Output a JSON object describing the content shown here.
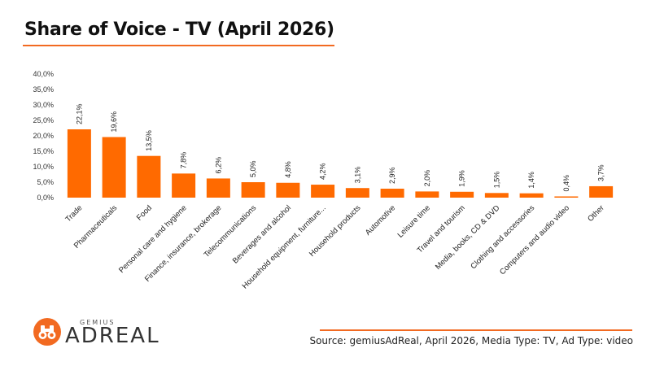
{
  "title": "Share of Voice - TV (April 2026)",
  "source": "Source: gemiusAdReal, April 2026, Media Type: TV, Ad Type: video",
  "logo": {
    "small": "GEMIUS",
    "main": "ADREAL"
  },
  "colors": {
    "bar": "#ff6a00",
    "accent": "#f26a21",
    "text": "#222222"
  },
  "chart_data": {
    "type": "bar",
    "categories": [
      "Trade",
      "Pharmaceuticals",
      "Food",
      "Personal care and hygiene",
      "Finance, insurance, brokerage",
      "Telecommunications",
      "Beverages and alcohol",
      "Household equipment, furniture...",
      "Household products",
      "Automotive",
      "Leisure time",
      "Travel and tourism",
      "Media, books, CD & DVD",
      "Clothing and accessories",
      "Computers and audio video",
      "Other"
    ],
    "values": [
      22.1,
      19.6,
      13.5,
      7.8,
      6.2,
      5.0,
      4.8,
      4.2,
      3.1,
      2.9,
      2.0,
      1.9,
      1.5,
      1.4,
      0.4,
      3.7
    ],
    "value_labels": [
      "22,1%",
      "19,6%",
      "13,5%",
      "7,8%",
      "6,2%",
      "5,0%",
      "4,8%",
      "4,2%",
      "3,1%",
      "2,9%",
      "2,0%",
      "1,9%",
      "1,5%",
      "1,4%",
      "0,4%",
      "3,7%"
    ],
    "ylim": [
      0,
      40
    ],
    "yticks": [
      0,
      5,
      10,
      15,
      20,
      25,
      30,
      35,
      40
    ],
    "ytick_labels": [
      "0,0%",
      "5,0%",
      "10,0%",
      "15,0%",
      "20,0%",
      "25,0%",
      "30,0%",
      "35,0%",
      "40,0%"
    ],
    "grid": false,
    "legend": "none"
  }
}
